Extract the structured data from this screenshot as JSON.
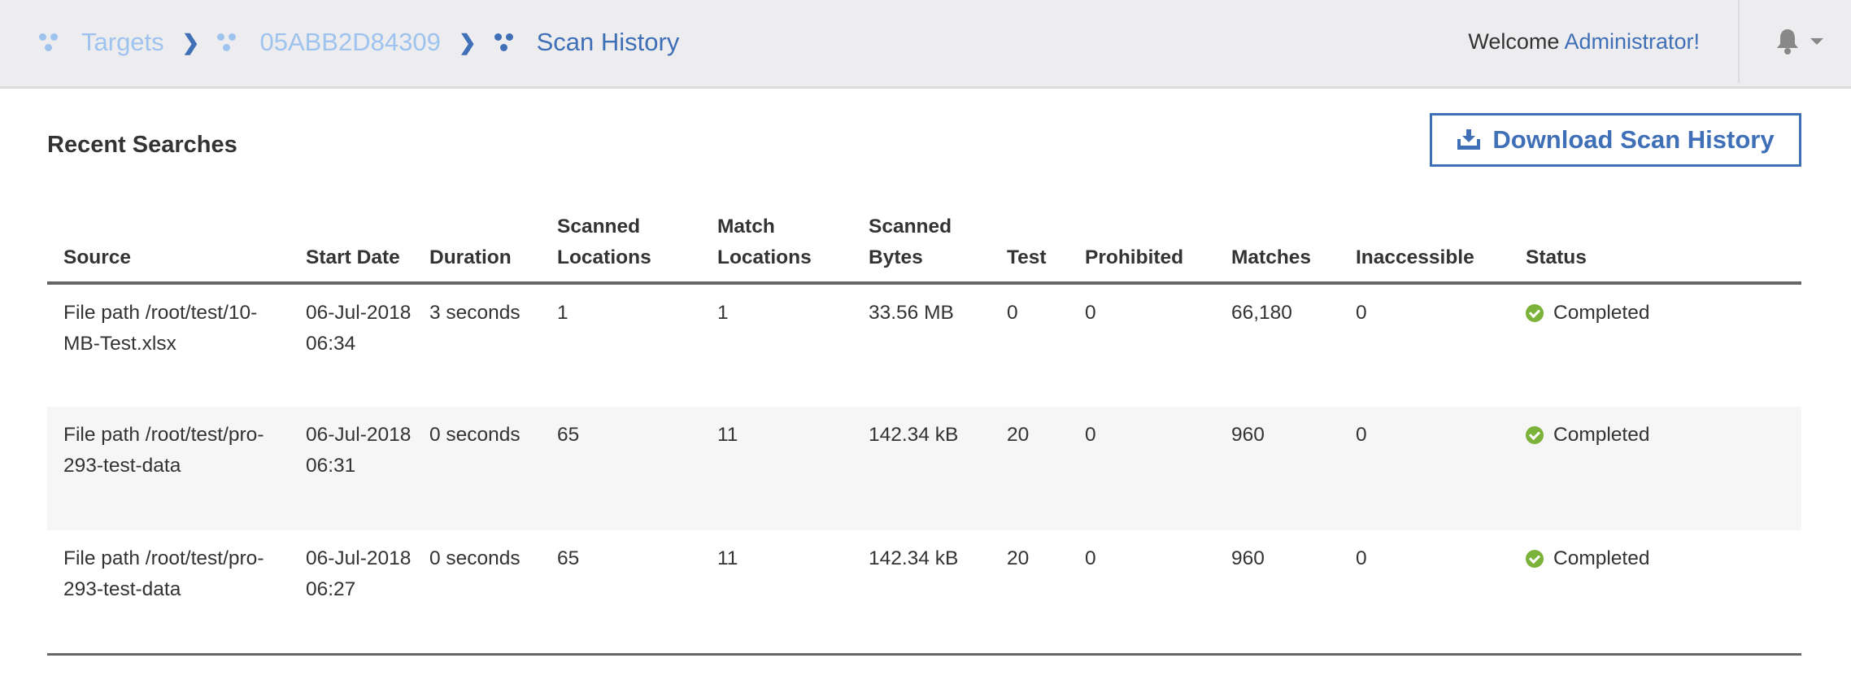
{
  "breadcrumb": [
    {
      "label": "Targets"
    },
    {
      "label": "05ABB2D84309"
    },
    {
      "label": "Scan History"
    }
  ],
  "header": {
    "welcome": "Welcome",
    "user": "Administrator!"
  },
  "page": {
    "title": "Recent Searches",
    "download_label": "Download Scan History"
  },
  "table": {
    "columns": [
      "Source",
      "Start Date",
      "Duration",
      "Scanned Locations",
      "Match Locations",
      "Scanned Bytes",
      "Test",
      "Prohibited",
      "Matches",
      "Inaccessible",
      "Status"
    ],
    "rows": [
      [
        "File path /root/test/10-MB-Test.xlsx",
        "06-Jul-2018 06:34",
        "3 seconds",
        "1",
        "1",
        "33.56 MB",
        "0",
        "0",
        "66,180",
        "0",
        "Completed"
      ],
      [
        "File path /root/test/pro-293-test-data",
        "06-Jul-2018 06:31",
        "0 seconds",
        "65",
        "11",
        "142.34 kB",
        "20",
        "0",
        "960",
        "0",
        "Completed"
      ],
      [
        "File path /root/test/pro-293-test-data",
        "06-Jul-2018 06:27",
        "0 seconds",
        "65",
        "11",
        "142.34 kB",
        "20",
        "0",
        "960",
        "0",
        "Completed"
      ]
    ]
  },
  "colors": {
    "accent": "#3f6fb6",
    "crumb_inactive": "#9ec3ee",
    "success": "#7bb33a"
  }
}
